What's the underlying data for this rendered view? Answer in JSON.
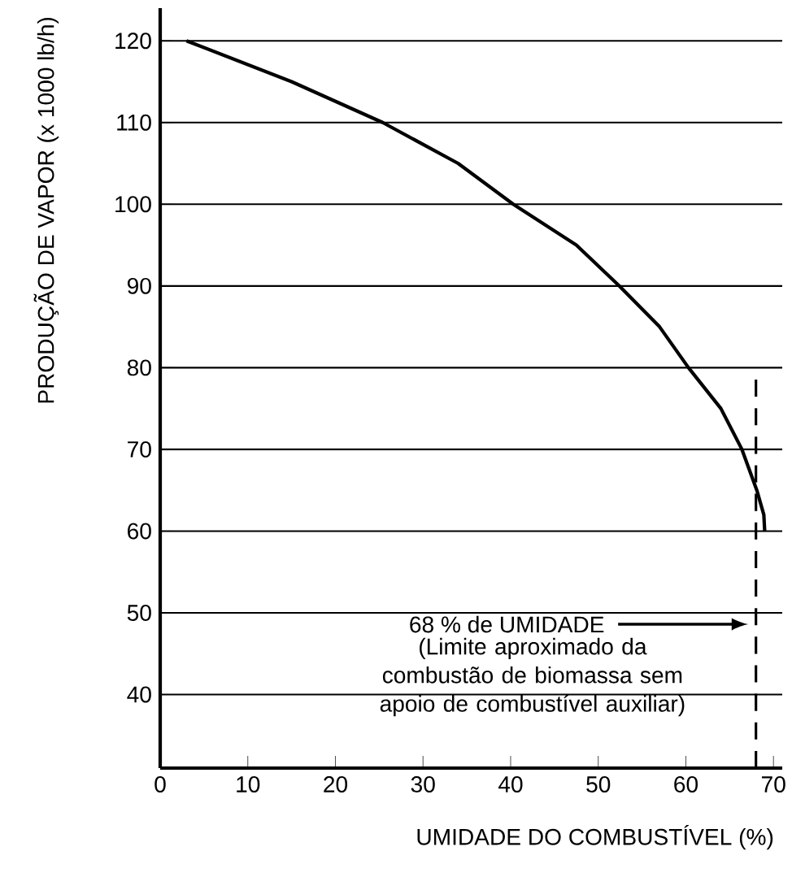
{
  "chart_data": {
    "type": "line",
    "xlabel": "UMIDADE DO COMBUSTÍVEL (%)",
    "ylabel": "PRODUÇÃO DE VAPOR (x 1000 lb/h)",
    "x": [
      3,
      15,
      25.4,
      34,
      40.3,
      47.5,
      52.4,
      57,
      60.3,
      64,
      66.4,
      68.1,
      68.9,
      69
    ],
    "values": [
      120,
      115,
      110,
      105,
      100,
      95,
      90,
      85,
      80,
      75,
      70,
      65,
      62,
      60
    ],
    "color": "#000000",
    "marker": "none",
    "line_style": "solid",
    "grid": "y",
    "xlim": [
      0,
      71
    ],
    "ylim": [
      31,
      124
    ],
    "xticks": [
      0,
      10,
      20,
      30,
      40,
      50,
      60,
      70
    ],
    "yticks": [
      40,
      50,
      60,
      70,
      80,
      90,
      100,
      110,
      120
    ],
    "ref_lines": [
      {
        "axis": "x",
        "value": 68,
        "line_style": "dashed",
        "color": "#000000"
      }
    ],
    "annotations": [
      "68 % de UMIDADE",
      "(Limite aproximado da combustão de biomassa sem apoio de combustível auxiliar)"
    ]
  }
}
